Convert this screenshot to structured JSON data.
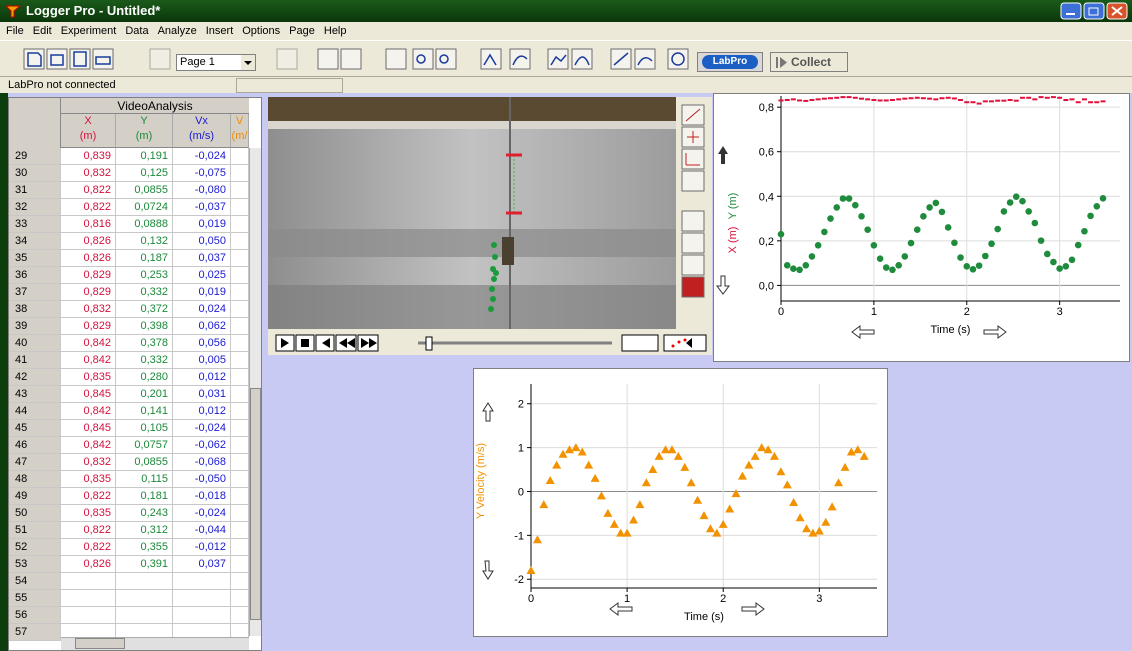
{
  "window": {
    "title": "Logger Pro - Untitled*"
  },
  "menu": [
    "File",
    "Edit",
    "Experiment",
    "Data",
    "Analyze",
    "Insert",
    "Options",
    "Page",
    "Help"
  ],
  "toolbar": {
    "page": "Page 1",
    "labpro": "LabPro",
    "collect": "Collect"
  },
  "status": "LabPro not connected",
  "table": {
    "title": "VideoAnalysis",
    "columns": [
      {
        "name": "X",
        "unit": "(m)",
        "color": "#d4123c"
      },
      {
        "name": "Y",
        "unit": "(m)",
        "color": "#1b8a3a"
      },
      {
        "name": "Vx",
        "unit": "(m/s)",
        "color": "#1a1ad2"
      },
      {
        "name": "V",
        "unit": "(m/",
        "color": "#f08c00"
      }
    ],
    "row_numbers": [
      29,
      30,
      31,
      32,
      33,
      34,
      35,
      36,
      37,
      38,
      39,
      40,
      41,
      42,
      43,
      44,
      45,
      46,
      47,
      48,
      49,
      50,
      51,
      52,
      53,
      54,
      55,
      56,
      57
    ],
    "rows": [
      [
        "0,839",
        "0,191",
        "-0,024"
      ],
      [
        "0,832",
        "0,125",
        "-0,075"
      ],
      [
        "0,822",
        "0,0855",
        "-0,080"
      ],
      [
        "0,822",
        "0,0724",
        "-0,037"
      ],
      [
        "0,816",
        "0,0888",
        "0,019"
      ],
      [
        "0,826",
        "0,132",
        "0,050"
      ],
      [
        "0,826",
        "0,187",
        "0,037"
      ],
      [
        "0,829",
        "0,253",
        "0,025"
      ],
      [
        "0,829",
        "0,332",
        "0,019"
      ],
      [
        "0,832",
        "0,372",
        "0,024"
      ],
      [
        "0,829",
        "0,398",
        "0,062"
      ],
      [
        "0,842",
        "0,378",
        "0,056"
      ],
      [
        "0,842",
        "0,332",
        "0,005"
      ],
      [
        "0,835",
        "0,280",
        "0,012"
      ],
      [
        "0,845",
        "0,201",
        "0,031"
      ],
      [
        "0,842",
        "0,141",
        "0,012"
      ],
      [
        "0,845",
        "0,105",
        "-0,024"
      ],
      [
        "0,842",
        "0,0757",
        "-0,062"
      ],
      [
        "0,832",
        "0,0855",
        "-0,068"
      ],
      [
        "0,835",
        "0,115",
        "-0,050"
      ],
      [
        "0,822",
        "0,181",
        "-0,018"
      ],
      [
        "0,835",
        "0,243",
        "-0,024"
      ],
      [
        "0,822",
        "0,312",
        "-0,044"
      ],
      [
        "0,822",
        "0,355",
        "-0,012"
      ],
      [
        "0,826",
        "0,391",
        "0,037"
      ]
    ]
  },
  "chart_data": [
    {
      "type": "scatter",
      "xlabel": "Time (s)",
      "x": [
        0,
        0.067,
        0.133,
        0.2,
        0.267,
        0.333,
        0.4,
        0.467,
        0.533,
        0.6,
        0.667,
        0.733,
        0.8,
        0.867,
        0.933,
        1,
        1.067,
        1.133,
        1.2,
        1.267,
        1.333,
        1.4,
        1.467,
        1.533,
        1.6,
        1.667,
        1.733,
        1.8,
        1.867,
        1.933,
        2,
        2.067,
        2.133,
        2.2,
        2.267,
        2.333,
        2.4,
        2.467,
        2.533,
        2.6,
        2.667,
        2.733,
        2.8,
        2.867,
        2.933,
        3,
        3.067,
        3.133,
        3.2,
        3.267,
        3.333,
        3.4,
        3.467
      ],
      "series": [
        {
          "name": "X (m)",
          "color": "#e0103c",
          "marker": "dash",
          "values": [
            0.83,
            0.832,
            0.835,
            0.83,
            0.828,
            0.832,
            0.835,
            0.838,
            0.84,
            0.842,
            0.845,
            0.845,
            0.842,
            0.838,
            0.835,
            0.832,
            0.83,
            0.83,
            0.832,
            0.835,
            0.838,
            0.84,
            0.842,
            0.84,
            0.838,
            0.835,
            0.84,
            0.842,
            0.839,
            0.832,
            0.822,
            0.822,
            0.816,
            0.826,
            0.826,
            0.829,
            0.829,
            0.832,
            0.829,
            0.842,
            0.842,
            0.835,
            0.845,
            0.842,
            0.845,
            0.842,
            0.832,
            0.835,
            0.822,
            0.835,
            0.822,
            0.822,
            0.826
          ]
        },
        {
          "name": "Y (m)",
          "color": "#1e8c3c",
          "marker": "circle",
          "values": [
            0.23,
            0.09,
            0.075,
            0.07,
            0.09,
            0.13,
            0.18,
            0.24,
            0.3,
            0.35,
            0.39,
            0.39,
            0.36,
            0.31,
            0.25,
            0.18,
            0.12,
            0.08,
            0.07,
            0.09,
            0.13,
            0.19,
            0.25,
            0.31,
            0.35,
            0.37,
            0.33,
            0.26,
            0.191,
            0.125,
            0.0855,
            0.0724,
            0.0888,
            0.132,
            0.187,
            0.253,
            0.332,
            0.372,
            0.398,
            0.378,
            0.332,
            0.28,
            0.201,
            0.141,
            0.105,
            0.0757,
            0.0855,
            0.115,
            0.181,
            0.243,
            0.312,
            0.355,
            0.391
          ]
        }
      ],
      "xlim": [
        0,
        3.65
      ],
      "ylim": [
        -0.07,
        0.85
      ],
      "xticks": [
        0,
        1,
        2,
        3
      ],
      "yticks": [
        {
          "value": 0,
          "label": "0,0"
        },
        {
          "value": 0.2,
          "label": "0,2"
        },
        {
          "value": 0.4,
          "label": "0,4"
        },
        {
          "value": 0.6,
          "label": "0,6"
        },
        {
          "value": 0.8,
          "label": "0,8"
        }
      ],
      "grid": true
    },
    {
      "type": "scatter",
      "xlabel": "Time (s)",
      "x": [
        0,
        0.067,
        0.133,
        0.2,
        0.267,
        0.333,
        0.4,
        0.467,
        0.533,
        0.6,
        0.667,
        0.733,
        0.8,
        0.867,
        0.933,
        1,
        1.067,
        1.133,
        1.2,
        1.267,
        1.333,
        1.4,
        1.467,
        1.533,
        1.6,
        1.667,
        1.733,
        1.8,
        1.867,
        1.933,
        2,
        2.067,
        2.133,
        2.2,
        2.267,
        2.333,
        2.4,
        2.467,
        2.533,
        2.6,
        2.667,
        2.733,
        2.8,
        2.867,
        2.933,
        3,
        3.067,
        3.133,
        3.2,
        3.267,
        3.333,
        3.4,
        3.467
      ],
      "series": [
        {
          "name": "Y Velocity (m/s)",
          "color": "#f39200",
          "marker": "triangle",
          "values": [
            -1.8,
            -1.1,
            -0.3,
            0.25,
            0.6,
            0.85,
            0.95,
            1.0,
            0.9,
            0.6,
            0.3,
            -0.1,
            -0.5,
            -0.75,
            -0.95,
            -0.95,
            -0.65,
            -0.3,
            0.2,
            0.5,
            0.8,
            0.95,
            0.95,
            0.8,
            0.55,
            0.2,
            -0.2,
            -0.55,
            -0.85,
            -0.95,
            -0.75,
            -0.4,
            -0.05,
            0.35,
            0.6,
            0.8,
            1.0,
            0.95,
            0.8,
            0.45,
            0.15,
            -0.25,
            -0.6,
            -0.85,
            -0.95,
            -0.9,
            -0.7,
            -0.35,
            0.2,
            0.55,
            0.9,
            0.95,
            0.8
          ]
        }
      ],
      "xlim": [
        0,
        3.6
      ],
      "ylim": [
        -2.2,
        2.45
      ],
      "xticks": [
        0,
        1,
        2,
        3
      ],
      "yticks": [
        -2,
        -1,
        0,
        1,
        2
      ],
      "grid": true
    }
  ]
}
